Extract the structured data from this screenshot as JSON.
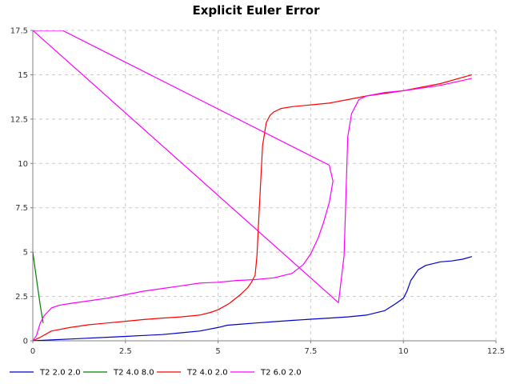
{
  "chart_data": {
    "type": "line",
    "title": "Explicit Euler Error",
    "xlabel": "",
    "ylabel": "",
    "xlim": [
      0,
      12.5
    ],
    "ylim": [
      0,
      17.5
    ],
    "x_ticks": [
      "0",
      "2.5",
      "5",
      "7.5",
      "10",
      "12.5"
    ],
    "y_ticks": [
      "0",
      "2.5",
      "5",
      "7.5",
      "10",
      "12.5",
      "15",
      "17.5"
    ],
    "grid": true,
    "legend_position": "bottom",
    "series": [
      {
        "name": "T2 2.0 2.0",
        "color": "#0000cc",
        "points": [
          [
            0,
            0
          ],
          [
            0.5,
            0.05
          ],
          [
            1,
            0.1
          ],
          [
            1.5,
            0.15
          ],
          [
            2,
            0.2
          ],
          [
            2.5,
            0.25
          ],
          [
            3,
            0.3
          ],
          [
            3.5,
            0.35
          ],
          [
            4,
            0.45
          ],
          [
            4.5,
            0.55
          ],
          [
            5,
            0.75
          ],
          [
            5.25,
            0.88
          ],
          [
            5.5,
            0.92
          ],
          [
            6,
            1.0
          ],
          [
            6.5,
            1.08
          ],
          [
            7,
            1.15
          ],
          [
            7.5,
            1.22
          ],
          [
            8,
            1.28
          ],
          [
            8.5,
            1.35
          ],
          [
            9,
            1.45
          ],
          [
            9.5,
            1.7
          ],
          [
            9.8,
            2.1
          ],
          [
            10,
            2.4
          ],
          [
            10.1,
            2.8
          ],
          [
            10.2,
            3.4
          ],
          [
            10.4,
            4.0
          ],
          [
            10.6,
            4.25
          ],
          [
            10.8,
            4.35
          ],
          [
            11,
            4.45
          ],
          [
            11.3,
            4.5
          ],
          [
            11.6,
            4.6
          ],
          [
            11.85,
            4.75
          ]
        ]
      },
      {
        "name": "T2 4.0 8.0",
        "color": "#008000",
        "points": [
          [
            0,
            5.0
          ],
          [
            0.1,
            3.5
          ],
          [
            0.2,
            2.0
          ],
          [
            0.28,
            1.0
          ]
        ]
      },
      {
        "name": "T2 4.0 2.0",
        "color": "#ff0000",
        "points": [
          [
            0,
            0
          ],
          [
            0.2,
            0.2
          ],
          [
            0.5,
            0.55
          ],
          [
            1,
            0.75
          ],
          [
            1.5,
            0.9
          ],
          [
            2,
            1.0
          ],
          [
            2.5,
            1.1
          ],
          [
            3,
            1.2
          ],
          [
            3.5,
            1.28
          ],
          [
            4,
            1.35
          ],
          [
            4.5,
            1.45
          ],
          [
            4.8,
            1.6
          ],
          [
            5,
            1.75
          ],
          [
            5.3,
            2.1
          ],
          [
            5.6,
            2.6
          ],
          [
            5.8,
            3.0
          ],
          [
            5.9,
            3.3
          ],
          [
            6,
            3.7
          ],
          [
            6.05,
            4.8
          ],
          [
            6.1,
            7.0
          ],
          [
            6.15,
            9.0
          ],
          [
            6.2,
            11.0
          ],
          [
            6.3,
            12.3
          ],
          [
            6.4,
            12.7
          ],
          [
            6.5,
            12.9
          ],
          [
            6.7,
            13.1
          ],
          [
            7,
            13.2
          ],
          [
            7.5,
            13.3
          ],
          [
            8,
            13.4
          ],
          [
            8.5,
            13.6
          ],
          [
            9,
            13.8
          ],
          [
            10,
            14.1
          ],
          [
            11,
            14.5
          ],
          [
            11.85,
            15.0
          ]
        ]
      },
      {
        "name": "T2 6.0 2.0",
        "color": "#ff00ff",
        "points": [
          [
            0,
            0
          ],
          [
            0.1,
            0.3
          ],
          [
            0.2,
            1.0
          ],
          [
            0.3,
            1.4
          ],
          [
            0.5,
            1.85
          ],
          [
            0.7,
            2.0
          ],
          [
            1,
            2.1
          ],
          [
            1.5,
            2.25
          ],
          [
            2,
            2.4
          ],
          [
            2.5,
            2.6
          ],
          [
            3,
            2.8
          ],
          [
            3.5,
            2.95
          ],
          [
            4,
            3.1
          ],
          [
            4.5,
            3.25
          ],
          [
            5,
            3.3
          ],
          [
            5.5,
            3.4
          ],
          [
            6,
            3.45
          ],
          [
            6.5,
            3.55
          ],
          [
            7,
            3.8
          ],
          [
            7.3,
            4.3
          ],
          [
            7.5,
            4.9
          ],
          [
            7.7,
            5.8
          ],
          [
            7.85,
            6.7
          ],
          [
            8,
            7.8
          ],
          [
            8.1,
            9.0
          ],
          [
            8,
            9.9
          ],
          [
            0.8,
            17.5
          ],
          [
            0,
            17.5
          ],
          [
            8.25,
            2.15
          ],
          [
            8.4,
            4.8
          ],
          [
            8.5,
            11.5
          ],
          [
            8.6,
            12.8
          ],
          [
            8.8,
            13.6
          ],
          [
            9,
            13.8
          ],
          [
            9.5,
            14.0
          ],
          [
            10,
            14.1
          ],
          [
            11,
            14.4
          ],
          [
            11.85,
            14.8
          ]
        ]
      }
    ]
  }
}
